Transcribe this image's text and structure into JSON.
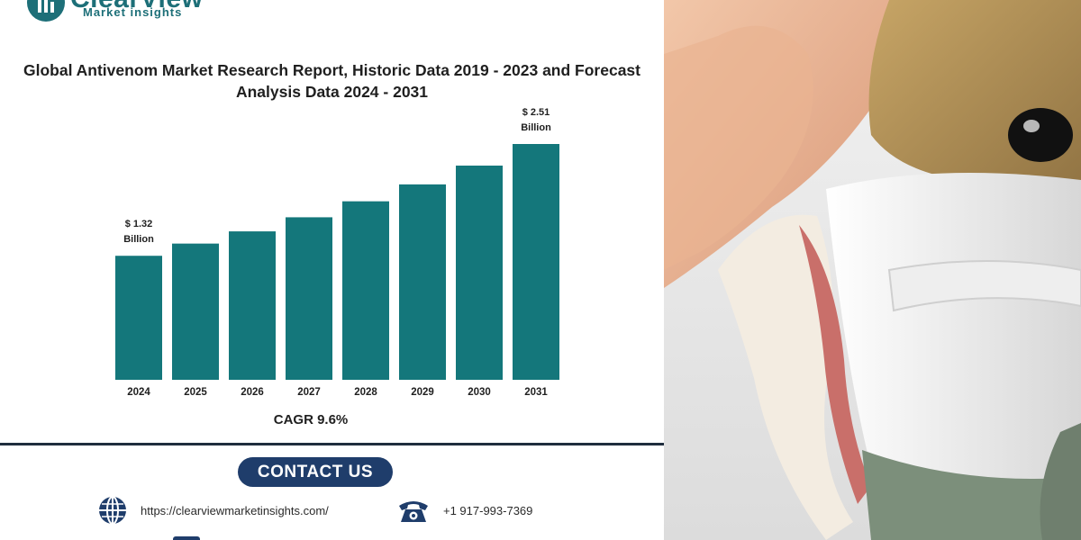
{
  "brand": {
    "name": "ClearView",
    "tagline": "Market insights"
  },
  "chart_data": {
    "type": "bar",
    "title": "Global Antivenom Market Research Report, Historic Data 2019 - 2023 and Forecast Analysis Data 2024 - 2031",
    "categories": [
      "2024",
      "2025",
      "2026",
      "2027",
      "2028",
      "2029",
      "2030",
      "2031"
    ],
    "values": [
      1.32,
      1.45,
      1.58,
      1.73,
      1.9,
      2.08,
      2.28,
      2.51
    ],
    "unit": "Billion",
    "data_labels": [
      {
        "index": 0,
        "line1": "$ 1.32",
        "line2": "Billion"
      },
      {
        "index": 7,
        "line1": "$ 2.51",
        "line2": "Billion"
      }
    ],
    "bar_color": "#14777b",
    "grid": false,
    "legend": "none"
  },
  "cagr_label": "CAGR 9.6%",
  "contact": {
    "heading": "CONTACT US",
    "website": "https://clearviewmarketinsights.com/",
    "phone": "+1 917-993-7369",
    "website_icon": "globe-icon",
    "phone_icon": "telephone-icon"
  },
  "colors": {
    "brand": "#1d6f78",
    "accent": "#1f3d6b"
  },
  "photo": {
    "subject": "snake-venom-extraction",
    "icon": "snake-photo"
  }
}
